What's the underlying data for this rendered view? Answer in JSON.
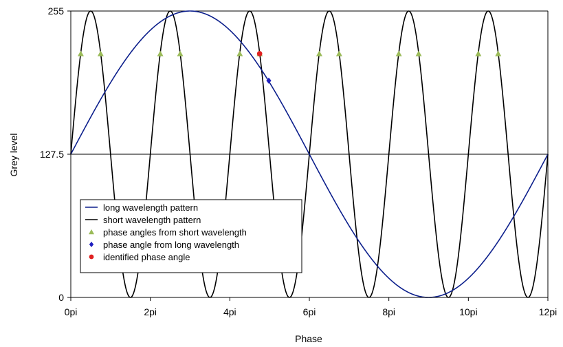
{
  "chart_data": {
    "type": "line",
    "xlabel": "Phase",
    "ylabel": "Grey level",
    "xlim": [
      0,
      12
    ],
    "ylim": [
      0,
      255
    ],
    "x_unit": "pi",
    "x_ticks": [
      0,
      2,
      4,
      6,
      8,
      10,
      12
    ],
    "x_tick_labels": [
      "0pi",
      "2pi",
      "4pi",
      "6pi",
      "8pi",
      "10pi",
      "12pi"
    ],
    "y_ticks": [
      0,
      127.5,
      255
    ],
    "y_tick_labels": [
      "0",
      "127.5",
      "255"
    ],
    "grid": "horizontal",
    "legend_position": "bottom-left",
    "series": [
      {
        "name": "long wavelength pattern",
        "kind": "line",
        "color": "#0c1f8c",
        "formula": "127.5 + 127.5*sin(2*pi*x/12)",
        "x": [
          0,
          1,
          2,
          3,
          4,
          5,
          6,
          7,
          8,
          9,
          10,
          11,
          12
        ],
        "values": [
          127.5,
          191.25,
          237.9,
          255,
          237.9,
          191.25,
          127.5,
          63.75,
          17.1,
          0,
          17.1,
          63.75,
          127.5
        ]
      },
      {
        "name": "short wavelength pattern",
        "kind": "line",
        "color": "#000000",
        "formula": "127.5 + 127.5*sin(2*pi*x/2)",
        "x": [
          0,
          0.5,
          1,
          1.5,
          2,
          2.5,
          3,
          3.5,
          4,
          4.5,
          5,
          5.5,
          6,
          6.5,
          7,
          7.5,
          8,
          8.5,
          9,
          9.5,
          10,
          10.5,
          11,
          11.5,
          12
        ],
        "values": [
          127.5,
          255,
          127.5,
          0,
          127.5,
          255,
          127.5,
          0,
          127.5,
          255,
          127.5,
          0,
          127.5,
          255,
          127.5,
          0,
          127.5,
          255,
          127.5,
          0,
          127.5,
          255,
          127.5,
          0,
          127.5
        ]
      },
      {
        "name": "phase angles from short wavelength",
        "kind": "marker",
        "marker": "triangle",
        "color": "#9bbb59",
        "x": [
          0.25,
          0.75,
          2.25,
          2.75,
          4.25,
          4.75,
          6.25,
          6.75,
          8.25,
          8.75,
          10.25,
          10.75
        ],
        "values": [
          217,
          217,
          217,
          217,
          217,
          217,
          217,
          217,
          217,
          217,
          217,
          217
        ]
      },
      {
        "name": "phase angle from long wavelength",
        "kind": "marker",
        "marker": "diamond",
        "color": "#1f1fbf",
        "x": [
          4.98
        ],
        "values": [
          193
        ]
      },
      {
        "name": "identified phase angle",
        "kind": "marker",
        "marker": "circle",
        "color": "#e02020",
        "x": [
          4.75
        ],
        "values": [
          217
        ]
      }
    ]
  }
}
